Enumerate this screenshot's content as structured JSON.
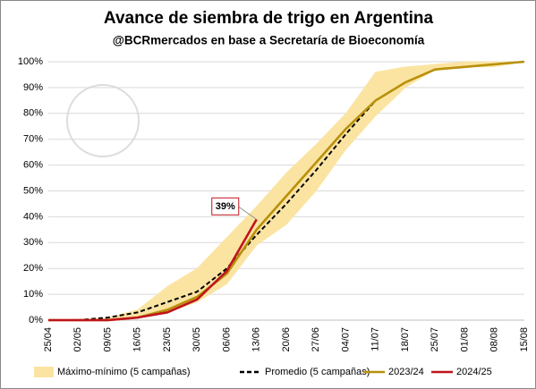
{
  "chart_data": {
    "type": "line",
    "title": "Avance de siembra de trigo en Argentina",
    "subtitle": "@BCRmercados en base a Secretaría de Bioeconomía",
    "categories": [
      "25/04",
      "02/05",
      "09/05",
      "16/05",
      "23/05",
      "30/05",
      "06/06",
      "13/06",
      "20/06",
      "27/06",
      "04/07",
      "11/07",
      "18/07",
      "25/07",
      "01/08",
      "08/08",
      "15/08"
    ],
    "band": {
      "name": "Máximo-mínimo (5 campañas)",
      "color": "#fbe4a2",
      "high": [
        0,
        0,
        1,
        4,
        13,
        20,
        32,
        44,
        57,
        68,
        80,
        96,
        98,
        99,
        100,
        100,
        100
      ],
      "low": [
        0,
        0,
        0,
        1,
        3,
        7,
        14,
        29,
        37,
        50,
        66,
        79,
        90,
        97,
        98,
        98,
        100
      ]
    },
    "series": [
      {
        "name": "Promedio (5 campañas)",
        "color": "#000000",
        "dashed": true,
        "values": [
          0,
          0,
          1,
          3,
          7,
          11,
          20,
          33,
          45,
          58,
          72,
          85,
          92,
          97,
          98,
          99,
          100
        ]
      },
      {
        "name": "2023/24",
        "color": "#b8900b",
        "values": [
          0,
          0,
          0,
          1,
          4,
          9,
          18,
          35,
          48,
          61,
          74,
          85,
          92,
          97,
          98,
          99,
          100
        ]
      },
      {
        "name": "2024/25",
        "color": "#c0141c",
        "values": [
          0,
          0,
          0,
          1,
          3,
          8,
          19,
          39,
          null,
          null,
          null,
          null,
          null,
          null,
          null,
          null,
          null
        ]
      }
    ],
    "annotation": "39%",
    "ylim": [
      0,
      100
    ],
    "yticks": [
      {
        "value": 0,
        "label": "0%"
      },
      {
        "value": 10,
        "label": "10%"
      },
      {
        "value": 20,
        "label": "20%"
      },
      {
        "value": 30,
        "label": "30%"
      },
      {
        "value": 40,
        "label": "40%"
      },
      {
        "value": 50,
        "label": "50%"
      },
      {
        "value": 60,
        "label": "60%"
      },
      {
        "value": 70,
        "label": "70%"
      },
      {
        "value": 80,
        "label": "80%"
      },
      {
        "value": 90,
        "label": "90%"
      },
      {
        "value": 100,
        "label": "100%"
      }
    ],
    "grid": true,
    "legend": "bottom"
  }
}
